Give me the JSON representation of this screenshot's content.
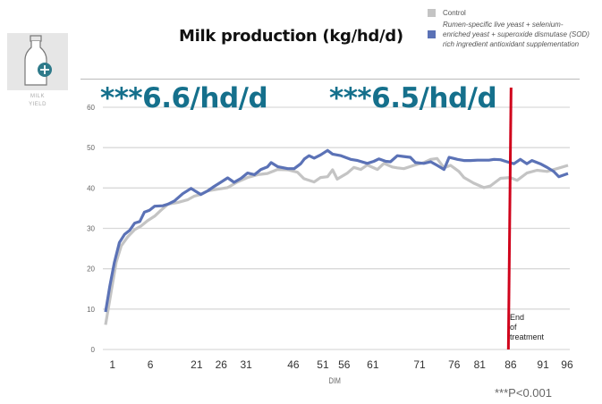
{
  "icon": {
    "caption_line1": "MILK",
    "caption_line2": "YIELD"
  },
  "legend": {
    "control": {
      "label": "Control",
      "color": "#c4c4c4"
    },
    "treatment": {
      "label_line1": "Rumen-specific live yeast + selenium-",
      "label_line2": "enriched yeast + superoxide dismutase (SOD)",
      "label_line3": "rich ingredient antioxidant supplementation",
      "color": "#5b72b6"
    }
  },
  "annotations": {
    "gain1": "***6.6/hd/d",
    "gain2": "***6.5/hd/d",
    "end_line1": "End",
    "end_line2": "of",
    "end_line3": "treatment",
    "pvalue": "***P<0.001",
    "end_color": "#d0021b"
  },
  "chart_data": {
    "type": "line",
    "title": "Milk production (kg/hd/d)",
    "xlabel": "DIM",
    "ylabel": "",
    "ylim": [
      0,
      60
    ],
    "yticks": [
      0,
      10,
      20,
      30,
      40,
      50,
      60
    ],
    "x_scale": "sample index 0-100 across plot",
    "xticks": [
      {
        "label": "1",
        "at": 1.5
      },
      {
        "label": "6",
        "at": 9.7
      },
      {
        "label": "21",
        "at": 19.7
      },
      {
        "label": "26",
        "at": 25
      },
      {
        "label": "31",
        "at": 30.4
      },
      {
        "label": "46",
        "at": 40.6
      },
      {
        "label": "51",
        "at": 47
      },
      {
        "label": "56",
        "at": 51.6
      },
      {
        "label": "61",
        "at": 57.8
      },
      {
        "label": "71",
        "at": 67.9
      },
      {
        "label": "76",
        "at": 75.4
      },
      {
        "label": "81",
        "at": 80.9
      },
      {
        "label": "86",
        "at": 87.6
      },
      {
        "label": "91",
        "at": 94.6
      },
      {
        "label": "96",
        "at": 99.8
      }
    ],
    "end_of_treatment_at": 87.3,
    "grid": true,
    "series": [
      {
        "name": "Control",
        "points": [
          [
            0,
            6.1
          ],
          [
            1.2,
            14.2
          ],
          [
            2.3,
            21.6
          ],
          [
            3.4,
            25.7
          ],
          [
            4.8,
            27.9
          ],
          [
            6.3,
            29.7
          ],
          [
            7.7,
            30.6
          ],
          [
            9.1,
            31.9
          ],
          [
            10.6,
            33
          ],
          [
            12,
            34.5
          ],
          [
            13.5,
            36
          ],
          [
            15.6,
            36.4
          ],
          [
            17.8,
            37.1
          ],
          [
            19.2,
            38
          ],
          [
            20.6,
            38.4
          ],
          [
            22.1,
            39.3
          ],
          [
            24.2,
            39.7
          ],
          [
            26.4,
            40.1
          ],
          [
            28.5,
            41.5
          ],
          [
            30.7,
            42.6
          ],
          [
            32.9,
            43.3
          ],
          [
            35,
            43.6
          ],
          [
            37.2,
            44.6
          ],
          [
            39.4,
            44.5
          ],
          [
            41.5,
            43.9
          ],
          [
            42.9,
            42.3
          ],
          [
            45.1,
            41.5
          ],
          [
            46.5,
            42.6
          ],
          [
            48,
            42.8
          ],
          [
            49.1,
            44.5
          ],
          [
            50.1,
            42.2
          ],
          [
            52.3,
            43.7
          ],
          [
            53.7,
            45.1
          ],
          [
            55.2,
            44.6
          ],
          [
            56.6,
            45.7
          ],
          [
            58.8,
            44.6
          ],
          [
            60.2,
            46.1
          ],
          [
            62,
            45.2
          ],
          [
            63.1,
            45
          ],
          [
            64.5,
            44.8
          ],
          [
            66.7,
            45.6
          ],
          [
            68.8,
            46.3
          ],
          [
            70.3,
            47.1
          ],
          [
            71.7,
            47.3
          ],
          [
            73.2,
            45
          ],
          [
            74.6,
            45.6
          ],
          [
            76.4,
            44.1
          ],
          [
            77.5,
            42.6
          ],
          [
            79.6,
            41.2
          ],
          [
            81.8,
            40.1
          ],
          [
            83.2,
            40.5
          ],
          [
            85.4,
            42.4
          ],
          [
            87.5,
            42.6
          ],
          [
            89,
            41.9
          ],
          [
            91.1,
            43.7
          ],
          [
            93.3,
            44.4
          ],
          [
            95.5,
            44.1
          ],
          [
            97.6,
            44.8
          ],
          [
            100,
            45.6
          ]
        ]
      },
      {
        "name": "Treatment",
        "points": [
          [
            0,
            9.3
          ],
          [
            0.9,
            15.6
          ],
          [
            1.9,
            21.5
          ],
          [
            3,
            26.5
          ],
          [
            4.1,
            28.5
          ],
          [
            5.2,
            29.5
          ],
          [
            6.3,
            31.3
          ],
          [
            7.4,
            31.7
          ],
          [
            8.4,
            34
          ],
          [
            9.5,
            34.5
          ],
          [
            10.6,
            35.5
          ],
          [
            12.4,
            35.6
          ],
          [
            13.5,
            36
          ],
          [
            14.9,
            36.8
          ],
          [
            16.7,
            38.6
          ],
          [
            18.5,
            39.9
          ],
          [
            20.6,
            38.4
          ],
          [
            22.1,
            39.3
          ],
          [
            23.5,
            40.4
          ],
          [
            24.9,
            41.4
          ],
          [
            26.4,
            42.5
          ],
          [
            27.8,
            41.4
          ],
          [
            29.3,
            42.4
          ],
          [
            30.7,
            43.7
          ],
          [
            32.2,
            43.3
          ],
          [
            33.6,
            44.6
          ],
          [
            35,
            45.2
          ],
          [
            35.8,
            46.3
          ],
          [
            37.2,
            45.3
          ],
          [
            39.4,
            44.8
          ],
          [
            40.8,
            44.8
          ],
          [
            42.2,
            46
          ],
          [
            43,
            47.2
          ],
          [
            44,
            48
          ],
          [
            45.1,
            47.4
          ],
          [
            46.5,
            48.2
          ],
          [
            48,
            49.3
          ],
          [
            49.1,
            48.4
          ],
          [
            50.9,
            48
          ],
          [
            53,
            47.1
          ],
          [
            54.5,
            46.8
          ],
          [
            56.6,
            46.1
          ],
          [
            58,
            46.6
          ],
          [
            59.1,
            47.2
          ],
          [
            60.6,
            46.6
          ],
          [
            61.6,
            46.5
          ],
          [
            63.1,
            48
          ],
          [
            64.5,
            47.8
          ],
          [
            65.9,
            47.6
          ],
          [
            67,
            46.3
          ],
          [
            68.8,
            46.1
          ],
          [
            70.3,
            46.5
          ],
          [
            71.7,
            45.6
          ],
          [
            73.2,
            44.6
          ],
          [
            74.3,
            47.6
          ],
          [
            76.1,
            47.1
          ],
          [
            77.5,
            46.8
          ],
          [
            78.9,
            46.8
          ],
          [
            80.4,
            46.9
          ],
          [
            81.5,
            46.9
          ],
          [
            82.9,
            46.9
          ],
          [
            84,
            47.1
          ],
          [
            85.4,
            47
          ],
          [
            86.8,
            46.5
          ],
          [
            88.3,
            46
          ],
          [
            89.7,
            47.1
          ],
          [
            91.1,
            46
          ],
          [
            92.2,
            46.8
          ],
          [
            94,
            46
          ],
          [
            95.5,
            45.1
          ],
          [
            96.9,
            44.1
          ],
          [
            98,
            42.8
          ],
          [
            100,
            43.6
          ]
        ]
      }
    ]
  }
}
